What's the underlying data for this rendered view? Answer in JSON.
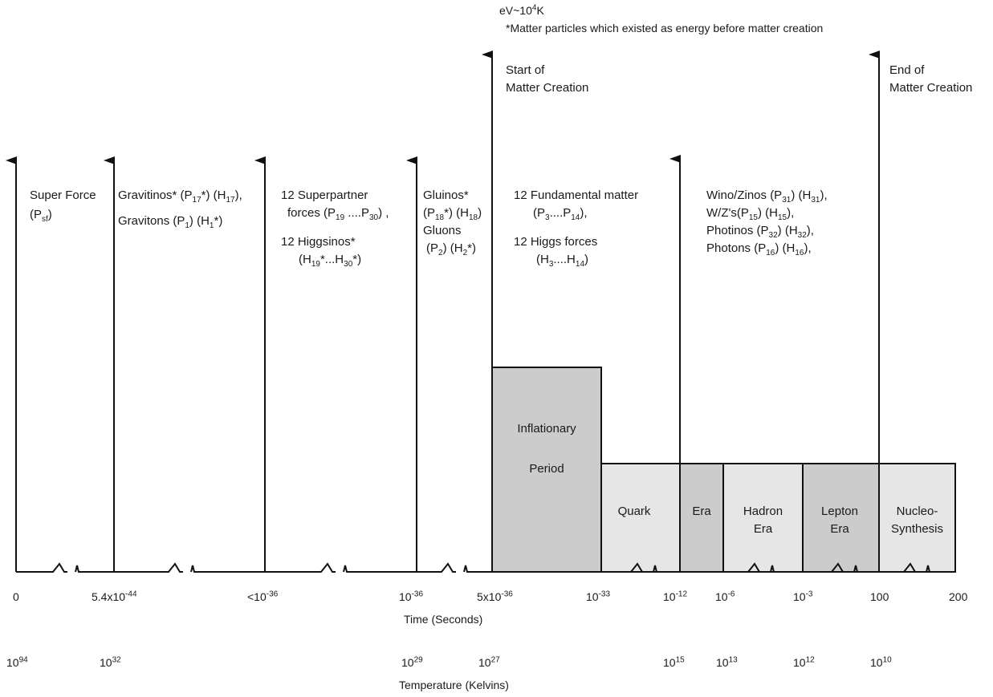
{
  "note": {
    "ev_prefix": "eV~10",
    "ev_exp": "4",
    "ev_suffix": "K",
    "footnote": "*Matter particles which existed as energy before matter creation"
  },
  "markers": {
    "start_line1": "Start of",
    "start_line2": "Matter Creation",
    "end_line1": "End of",
    "end_line2": "Matter Creation"
  },
  "columns": {
    "c1": {
      "a": "Super Force",
      "b": "(P",
      "b_sub": "sf",
      "b_end": ")"
    },
    "c2": {
      "l1a": "Gravitinos* (P",
      "l1s": "17",
      "l1b": "*) (H",
      "l1s2": "17",
      "l1c": "),",
      "l2a": "Gravitons (P",
      "l2s": "1",
      "l2b": ") (H",
      "l2s2": "1",
      "l2c": "*)"
    },
    "c3": {
      "l1": "12 Superpartner",
      "l2a": "forces  (P",
      "l2s": "19",
      "l2b": " ....P",
      "l2s2": "30",
      "l2c": ") ,",
      "l3": "12 Higgsinos*",
      "l4a": "(H",
      "l4s": "19",
      "l4b": "*...H",
      "l4s2": "30",
      "l4c": "*)"
    },
    "c4": {
      "l1": "Gluinos*",
      "l2a": "(P",
      "l2s": "18",
      "l2b": "*) (H",
      "l2s2": "18",
      "l2c": ")",
      "l3": "Gluons",
      "l4a": "(P",
      "l4s": "2",
      "l4b": ") (H",
      "l4s2": "2",
      "l4c": "*)"
    },
    "c5": {
      "l1": "12 Fundamental matter",
      "l2a": "(P",
      "l2s": "3",
      "l2b": "....P",
      "l2s2": "14",
      "l2c": "),",
      "l3": "12 Higgs forces",
      "l4a": "(H",
      "l4s": "3",
      "l4b": "....H",
      "l4s2": "14",
      "l4c": ")"
    },
    "c6": {
      "l1a": "Wino/Zinos (P",
      "l1s": "31",
      "l1b": ") (H",
      "l1s2": "31",
      "l1c": "),",
      "l2a": "W/Z's(P",
      "l2s": "15",
      "l2b": ") (H",
      "l2s2": "15",
      "l2c": "),",
      "l3a": "Photinos (P",
      "l3s": "32",
      "l3b": ") (H",
      "l3s2": "32",
      "l3c": "),",
      "l4a": "Photons (P",
      "l4s": "16",
      "l4b": ") (H",
      "l4s2": "16",
      "l4c": "),"
    }
  },
  "eras": {
    "inflation_1": "Inflationary",
    "inflation_2": "Period",
    "quark": "Quark",
    "era": "Era",
    "hadron_1": "Hadron",
    "hadron_2": "Era",
    "lepton_1": "Lepton",
    "lepton_2": "Era",
    "nucleo_1": "Nucleo-",
    "nucleo_2": "Synthesis"
  },
  "time_axis": {
    "title": "Time  (Seconds)",
    "t0": "0",
    "t1_a": "5.4x10",
    "t1_e": "-44",
    "t2_a": "<10",
    "t2_e": "-36",
    "t3_a": "10",
    "t3_e": "-36",
    "t4_a": "5x10",
    "t4_e": "-36",
    "t5_a": "10",
    "t5_e": "-33",
    "t6_a": "10",
    "t6_e": "-12",
    "t7_a": "10",
    "t7_e": "-6",
    "t8_a": "10",
    "t8_e": "-3",
    "t9": "100",
    "t10": "200"
  },
  "temp_axis": {
    "title": "Temperature (Kelvins)",
    "k1_a": "10",
    "k1_e": "94",
    "k2_a": "10",
    "k2_e": "32",
    "k3_a": "10",
    "k3_e": "29",
    "k4_a": "10",
    "k4_e": "27",
    "k5_a": "10",
    "k5_e": "15",
    "k6_a": "10",
    "k6_e": "13",
    "k7_a": "10",
    "k7_e": "12",
    "k8_a": "10",
    "k8_e": "10"
  },
  "colors": {
    "line": "#111111",
    "inflation_fill": "#cccccc",
    "light_fill": "#e6e6e6",
    "dark_fill": "#cccccc"
  }
}
